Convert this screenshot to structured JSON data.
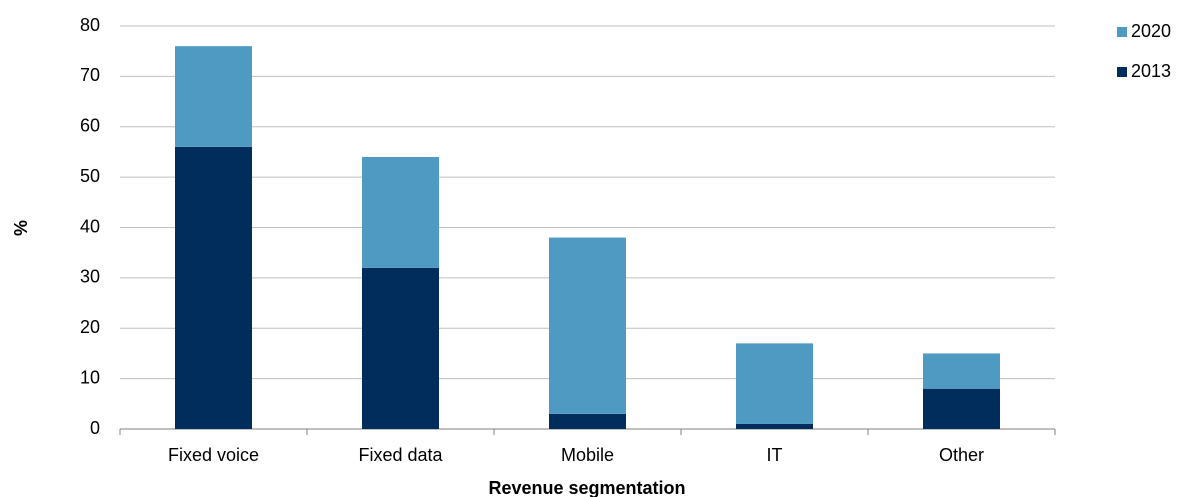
{
  "chart_data": {
    "type": "stacked-bar",
    "x_label": "Revenue segmentation",
    "y_label": "%",
    "categories": [
      "Fixed voice",
      "Fixed data",
      "Mobile",
      "IT",
      "Other"
    ],
    "series": [
      {
        "name": "2013",
        "color": "#002d5c",
        "values": [
          56,
          32,
          3,
          1,
          8
        ]
      },
      {
        "name": "2020",
        "color": "#4f9ac2",
        "values": [
          20,
          22,
          35,
          16,
          7
        ]
      }
    ],
    "ylim": [
      0,
      80
    ],
    "yticks": [
      0,
      10,
      20,
      30,
      40,
      50,
      60,
      70,
      80
    ],
    "grid": true,
    "legend": "top-right"
  }
}
